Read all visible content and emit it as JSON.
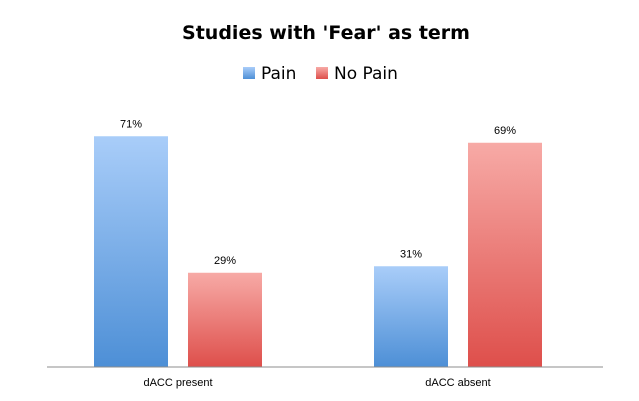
{
  "chart_data": {
    "type": "bar",
    "title": "Studies with 'Fear' as term",
    "xlabel": "",
    "ylabel": "",
    "categories": [
      "dACC present",
      "dACC absent"
    ],
    "series": [
      {
        "name": "Pain",
        "values": [
          71,
          31
        ],
        "labels": [
          "71%",
          "31%"
        ],
        "color_top": "#a9cdf9",
        "color_bottom": "#4d8fd6"
      },
      {
        "name": "No Pain",
        "values": [
          29,
          69
        ],
        "labels": [
          "29%",
          "69%"
        ],
        "color_top": "#f7aaa6",
        "color_bottom": "#de4f4b"
      }
    ],
    "ylim": [
      0,
      100
    ],
    "grid": false,
    "legend": "top-center"
  }
}
